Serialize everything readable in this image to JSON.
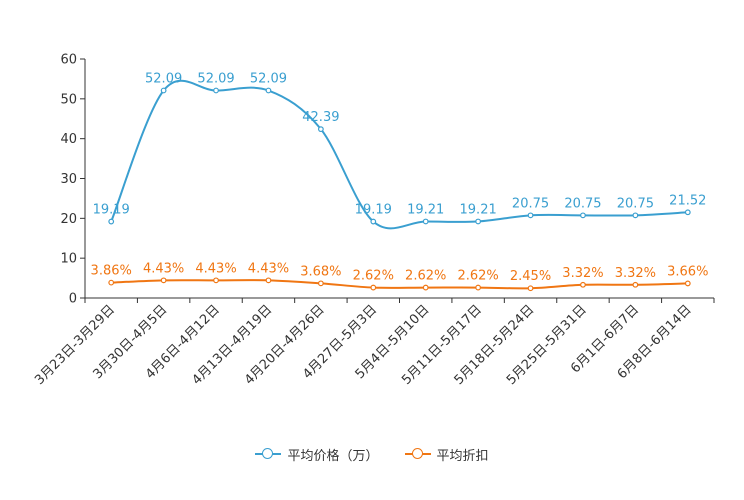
{
  "chart_data": {
    "type": "line",
    "categories": [
      "3月23日-3月29日",
      "3月30日-4月5日",
      "4月6日-4月12日",
      "4月13日-4月19日",
      "4月20日-4月26日",
      "4月27日-5月3日",
      "5月4日-5月10日",
      "5月11日-5月17日",
      "5月18日-5月24日",
      "5月25日-5月31日",
      "6月1日-6月7日",
      "6月8日-6月14日"
    ],
    "ylim": [
      0,
      60
    ],
    "yticks": [
      0,
      10,
      20,
      30,
      40,
      50,
      60
    ],
    "series": [
      {
        "name": "平均价格（万）",
        "color": "#3a9fd0",
        "values": [
          19.19,
          52.09,
          52.09,
          52.09,
          42.39,
          19.19,
          19.21,
          19.21,
          20.75,
          20.75,
          20.75,
          21.52
        ],
        "labels": [
          "19.19",
          "52.09",
          "52.09",
          "52.09",
          "42.39",
          "19.19",
          "19.21",
          "19.21",
          "20.75",
          "20.75",
          "20.75",
          "21.52"
        ]
      },
      {
        "name": "平均折扣",
        "color": "#f07613",
        "values": [
          3.86,
          4.43,
          4.43,
          4.43,
          3.68,
          2.62,
          2.62,
          2.62,
          2.45,
          3.32,
          3.32,
          3.66
        ],
        "labels": [
          "3.86%",
          "4.43%",
          "4.43%",
          "4.43%",
          "3.68%",
          "2.62%",
          "2.62%",
          "2.62%",
          "2.45%",
          "3.32%",
          "3.32%",
          "3.66%"
        ]
      }
    ],
    "legend": "bottom-center"
  }
}
